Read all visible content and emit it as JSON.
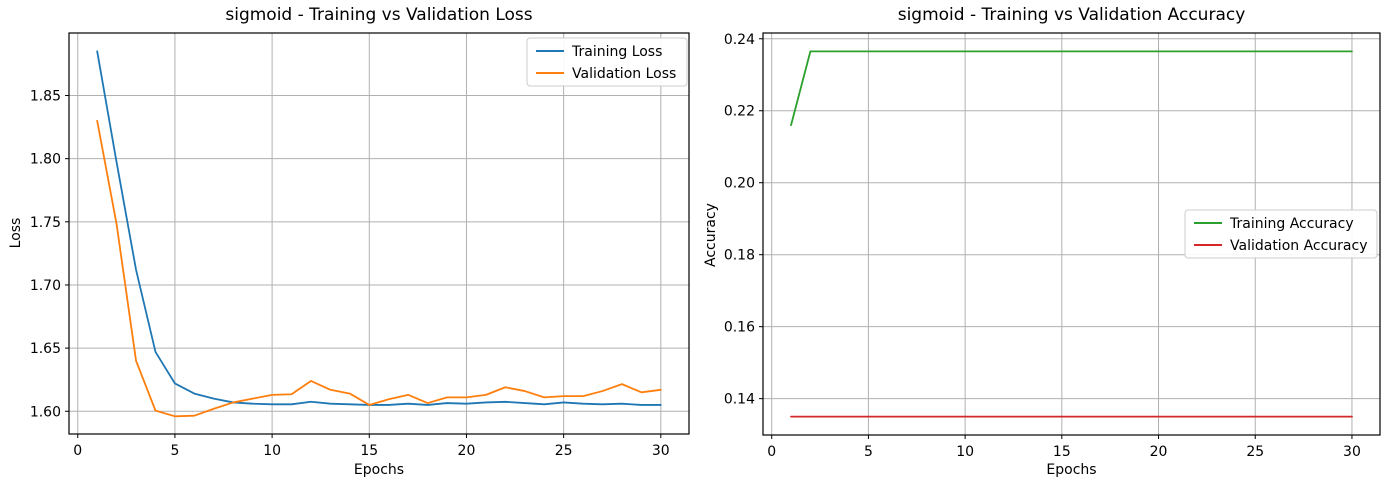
{
  "figure": {
    "background": "#ffffff",
    "grid_color": "#b0b0b0",
    "spine_color": "#000000",
    "legend_border_color": "#cccccc"
  },
  "chart_data": [
    {
      "type": "line",
      "title": "sigmoid - Training vs Validation Loss",
      "xlabel": "Epochs",
      "ylabel": "Loss",
      "x": [
        1,
        2,
        3,
        4,
        5,
        6,
        7,
        8,
        9,
        10,
        11,
        12,
        13,
        14,
        15,
        16,
        17,
        18,
        19,
        20,
        21,
        22,
        23,
        24,
        25,
        26,
        27,
        28,
        29,
        30
      ],
      "series": [
        {
          "name": "Training Loss",
          "color": "#1f77b4",
          "values": [
            1.885,
            1.797,
            1.712,
            1.647,
            1.622,
            1.614,
            1.61,
            1.607,
            1.606,
            1.6055,
            1.6055,
            1.6075,
            1.606,
            1.6055,
            1.605,
            1.605,
            1.606,
            1.605,
            1.6065,
            1.606,
            1.607,
            1.6075,
            1.6065,
            1.6055,
            1.607,
            1.606,
            1.6055,
            1.606,
            1.605,
            1.605
          ]
        },
        {
          "name": "Validation Loss",
          "color": "#ff7f0e",
          "values": [
            1.83,
            1.748,
            1.64,
            1.6005,
            1.596,
            1.5965,
            1.602,
            1.607,
            1.61,
            1.613,
            1.6135,
            1.624,
            1.617,
            1.614,
            1.605,
            1.6095,
            1.613,
            1.6065,
            1.611,
            1.611,
            1.613,
            1.619,
            1.616,
            1.611,
            1.612,
            1.612,
            1.616,
            1.6215,
            1.615,
            1.617
          ]
        }
      ],
      "xlim": [
        -0.45,
        31.45
      ],
      "ylim": [
        1.582,
        1.8995
      ],
      "xticks": [
        0,
        5,
        10,
        15,
        20,
        25,
        30
      ],
      "xtick_labels": [
        "0",
        "5",
        "10",
        "15",
        "20",
        "25",
        "30"
      ],
      "yticks": [
        1.6,
        1.65,
        1.7,
        1.75,
        1.8,
        1.85
      ],
      "ytick_labels": [
        "1.60",
        "1.65",
        "1.70",
        "1.75",
        "1.80",
        "1.85"
      ],
      "grid": true,
      "legend_position": "upper right"
    },
    {
      "type": "line",
      "title": "sigmoid - Training vs Validation Accuracy",
      "xlabel": "Epochs",
      "ylabel": "Accuracy",
      "x": [
        1,
        2,
        3,
        4,
        5,
        6,
        7,
        8,
        9,
        10,
        11,
        12,
        13,
        14,
        15,
        16,
        17,
        18,
        19,
        20,
        21,
        22,
        23,
        24,
        25,
        26,
        27,
        28,
        29,
        30
      ],
      "series": [
        {
          "name": "Training Accuracy",
          "color": "#2ca02c",
          "values": [
            0.216,
            0.2365,
            0.2365,
            0.2365,
            0.2365,
            0.2365,
            0.2365,
            0.2365,
            0.2365,
            0.2365,
            0.2365,
            0.2365,
            0.2365,
            0.2365,
            0.2365,
            0.2365,
            0.2365,
            0.2365,
            0.2365,
            0.2365,
            0.2365,
            0.2365,
            0.2365,
            0.2365,
            0.2365,
            0.2365,
            0.2365,
            0.2365,
            0.2365,
            0.2365
          ]
        },
        {
          "name": "Validation Accuracy",
          "color": "#d62728",
          "values": [
            0.135,
            0.135,
            0.135,
            0.135,
            0.135,
            0.135,
            0.135,
            0.135,
            0.135,
            0.135,
            0.135,
            0.135,
            0.135,
            0.135,
            0.135,
            0.135,
            0.135,
            0.135,
            0.135,
            0.135,
            0.135,
            0.135,
            0.135,
            0.135,
            0.135,
            0.135,
            0.135,
            0.135,
            0.135,
            0.135
          ]
        }
      ],
      "xlim": [
        -0.45,
        31.45
      ],
      "ylim": [
        0.1299,
        0.2416
      ],
      "xticks": [
        0,
        5,
        10,
        15,
        20,
        25,
        30
      ],
      "xtick_labels": [
        "0",
        "5",
        "10",
        "15",
        "20",
        "25",
        "30"
      ],
      "yticks": [
        0.14,
        0.16,
        0.18,
        0.2,
        0.22,
        0.24
      ],
      "ytick_labels": [
        "0.14",
        "0.16",
        "0.18",
        "0.20",
        "0.22",
        "0.24"
      ],
      "grid": true,
      "legend_position": "center right"
    }
  ]
}
